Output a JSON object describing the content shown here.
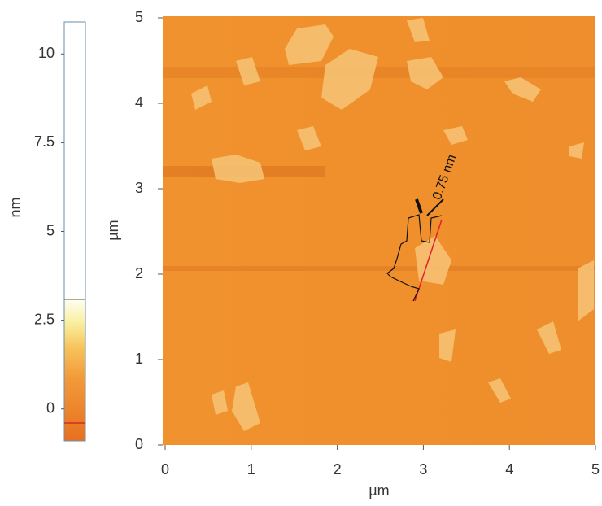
{
  "chart_data": {
    "type": "afm-image",
    "xlabel": "µm",
    "ylabel": "µm",
    "xlim": [
      0,
      5
    ],
    "ylim": [
      0,
      5
    ],
    "xticks": [
      0,
      1,
      2,
      3,
      4,
      5
    ],
    "yticks": [
      0,
      1,
      2,
      3,
      4,
      5
    ],
    "colorbar": {
      "label": "nm",
      "lim": [
        -0.9,
        10.9
      ],
      "ticks": [
        0,
        2.5,
        5,
        7.5,
        10
      ]
    },
    "annotation": "0.75 nm"
  }
}
